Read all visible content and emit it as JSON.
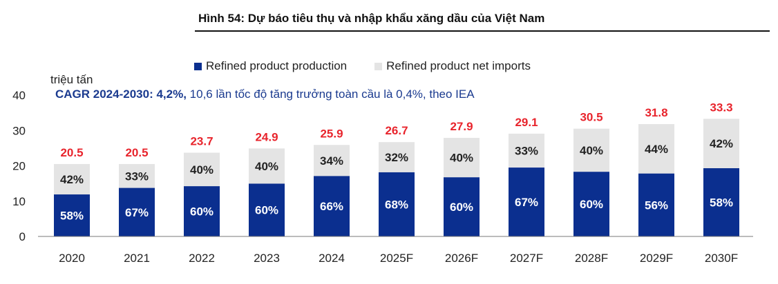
{
  "figure_title": "Hình 54: Dự báo tiêu thụ và nhập khẩu xăng dầu của Việt Nam",
  "unit_label": "triệu tấn",
  "annotation_bold": "CAGR 2024-2030: 4,2%,",
  "annotation_rest": " 10,6 lần tốc độ tăng trưởng toàn cầu là 0,4%, theo IEA",
  "colors": {
    "production": "#0b2f8f",
    "imports": "#e4e4e4",
    "total_label": "#e8242c",
    "annotation": "#1a3a8f"
  },
  "chart_data": {
    "type": "bar",
    "stacked": true,
    "title": "Hình 54: Dự báo tiêu thụ và nhập khẩu xăng dầu của Việt Nam",
    "ylabel": "triệu tấn",
    "ylim": [
      0,
      40
    ],
    "yticks": [
      0,
      10,
      20,
      30,
      40
    ],
    "grid": false,
    "legend_position": "top",
    "categories": [
      "2020",
      "2021",
      "2022",
      "2023",
      "2024",
      "2025F",
      "2026F",
      "2027F",
      "2028F",
      "2029F",
      "2030F"
    ],
    "totals": [
      20.5,
      20.5,
      23.7,
      24.9,
      25.9,
      26.7,
      27.9,
      29.1,
      30.5,
      31.8,
      33.3
    ],
    "series": [
      {
        "name": "Refined product production",
        "shares": [
          "58%",
          "67%",
          "60%",
          "60%",
          "66%",
          "68%",
          "60%",
          "67%",
          "60%",
          "56%",
          "58%"
        ]
      },
      {
        "name": "Refined product net imports",
        "shares": [
          "42%",
          "33%",
          "40%",
          "40%",
          "34%",
          "32%",
          "40%",
          "33%",
          "40%",
          "44%",
          "42%"
        ]
      }
    ]
  }
}
